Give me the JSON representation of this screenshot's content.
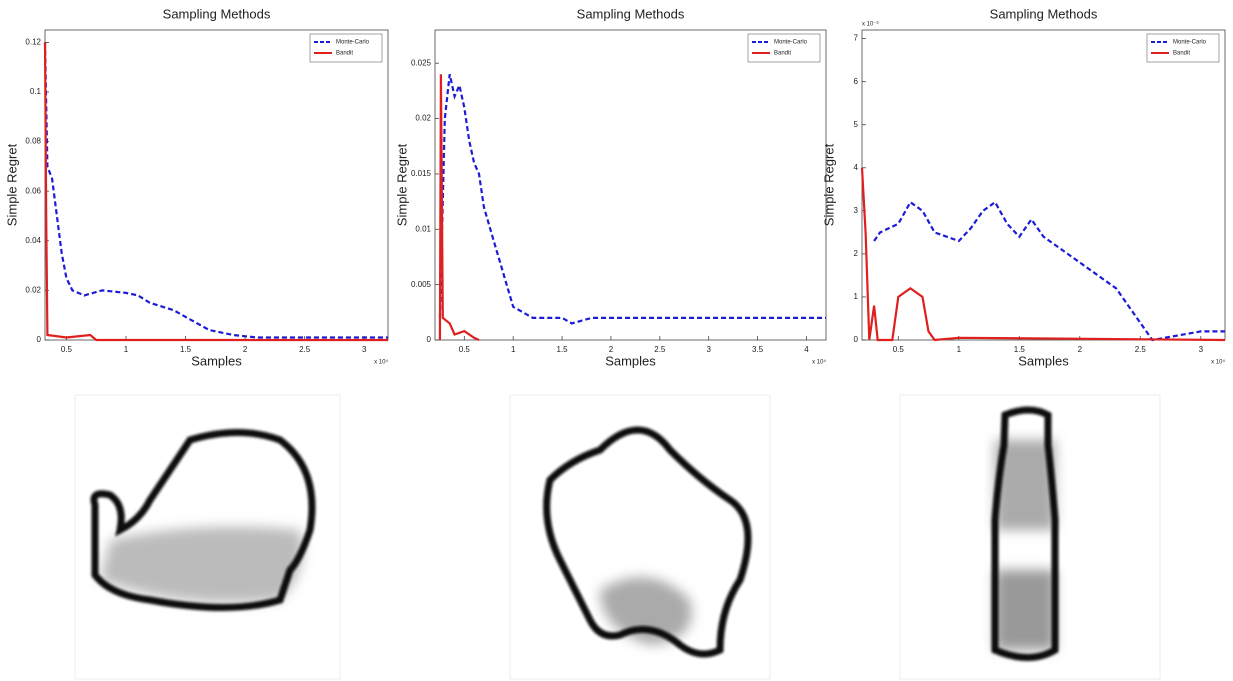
{
  "chart_data": [
    {
      "type": "line",
      "title": "Sampling Methods",
      "xlabel": "Samples",
      "ylabel": "Simple Regret",
      "x_axis_note": "x 10⁴",
      "xlim": [
        0.32,
        3.2
      ],
      "ylim": [
        0,
        0.125
      ],
      "xticks": [
        0.5,
        1,
        1.5,
        2,
        2.5,
        3
      ],
      "yticks": [
        0,
        0.02,
        0.04,
        0.06,
        0.08,
        0.1,
        0.12
      ],
      "legend": "upper right",
      "series": [
        {
          "name": "Monte-Carlo",
          "color": "#1c1cd6",
          "style": "dashed",
          "x": [
            0.32,
            0.34,
            0.38,
            0.42,
            0.46,
            0.5,
            0.55,
            0.65,
            0.8,
            1,
            1.1,
            1.2,
            1.4,
            1.55,
            1.7,
            1.9,
            2.1,
            2.5,
            3.2
          ],
          "values": [
            0.12,
            0.07,
            0.065,
            0.05,
            0.035,
            0.025,
            0.02,
            0.018,
            0.02,
            0.019,
            0.018,
            0.015,
            0.012,
            0.008,
            0.004,
            0.002,
            0.001,
            0.001,
            0.001
          ]
        },
        {
          "name": "Bandit",
          "color": "#e01f1f",
          "style": "solid",
          "x": [
            0.32,
            0.33,
            0.34,
            0.5,
            0.7,
            0.75,
            1,
            3.2
          ],
          "values": [
            0.12,
            0.05,
            0.002,
            0.001,
            0.002,
            0,
            0,
            0
          ]
        }
      ]
    },
    {
      "type": "line",
      "title": "Sampling Methods",
      "xlabel": "Samples",
      "ylabel": "Simple Regret",
      "x_axis_note": "x 10⁴",
      "xlim": [
        0.2,
        4.2
      ],
      "ylim": [
        0,
        0.028
      ],
      "xticks": [
        0.5,
        1,
        1.5,
        2,
        2.5,
        3,
        3.5,
        4
      ],
      "yticks": [
        0,
        0.005,
        0.01,
        0.015,
        0.02,
        0.025
      ],
      "legend": "upper right",
      "series": [
        {
          "name": "Monte-Carlo",
          "color": "#1c1cd6",
          "style": "dashed",
          "x": [
            0.25,
            0.3,
            0.35,
            0.4,
            0.45,
            0.5,
            0.55,
            0.6,
            0.65,
            0.7,
            0.8,
            0.9,
            1,
            1.2,
            1.5,
            1.6,
            1.8,
            2.5,
            3.5,
            4.2
          ],
          "values": [
            0.002,
            0.02,
            0.024,
            0.022,
            0.023,
            0.021,
            0.018,
            0.016,
            0.015,
            0.012,
            0.009,
            0.006,
            0.003,
            0.002,
            0.002,
            0.0015,
            0.002,
            0.002,
            0.002,
            0.002
          ]
        },
        {
          "name": "Bandit",
          "color": "#e01f1f",
          "style": "solid",
          "x": [
            0.25,
            0.26,
            0.28,
            0.35,
            0.4,
            0.5,
            0.6,
            0.65
          ],
          "values": [
            0,
            0.024,
            0.002,
            0.0015,
            0.0005,
            0.0008,
            0.0002,
            0
          ]
        }
      ]
    },
    {
      "type": "line",
      "title": "Sampling Methods",
      "xlabel": "Samples",
      "ylabel": "Simple Regret",
      "x_axis_note": "x 10⁴",
      "y_axis_note": "x 10⁻³",
      "xlim": [
        0.2,
        3.2
      ],
      "ylim": [
        0,
        7.2
      ],
      "xticks": [
        0.5,
        1,
        1.5,
        2,
        2.5,
        3
      ],
      "yticks": [
        0,
        1,
        2,
        3,
        4,
        5,
        6,
        7
      ],
      "legend": "upper right",
      "series": [
        {
          "name": "Monte-Carlo",
          "color": "#1c1cd6",
          "style": "dashed",
          "x": [
            0.3,
            0.35,
            0.5,
            0.6,
            0.7,
            0.8,
            1,
            1.1,
            1.2,
            1.3,
            1.4,
            1.5,
            1.6,
            1.7,
            1.9,
            2.1,
            2.3,
            2.5,
            2.6,
            2.8,
            3,
            3.2
          ],
          "values": [
            2.3,
            2.5,
            2.7,
            3.2,
            3.0,
            2.5,
            2.3,
            2.6,
            3.0,
            3.2,
            2.7,
            2.4,
            2.8,
            2.4,
            2.0,
            1.6,
            1.2,
            0.4,
            0,
            0.1,
            0.2,
            0.2
          ]
        },
        {
          "name": "Bandit",
          "color": "#e01f1f",
          "style": "solid",
          "x": [
            0.2,
            0.23,
            0.26,
            0.3,
            0.33,
            0.45,
            0.5,
            0.6,
            0.7,
            0.75,
            0.8,
            1,
            3.2
          ],
          "values": [
            4,
            2.5,
            0,
            0.8,
            0,
            0,
            1.0,
            1.2,
            1.0,
            0.2,
            0,
            0.05,
            0
          ]
        }
      ]
    }
  ]
}
